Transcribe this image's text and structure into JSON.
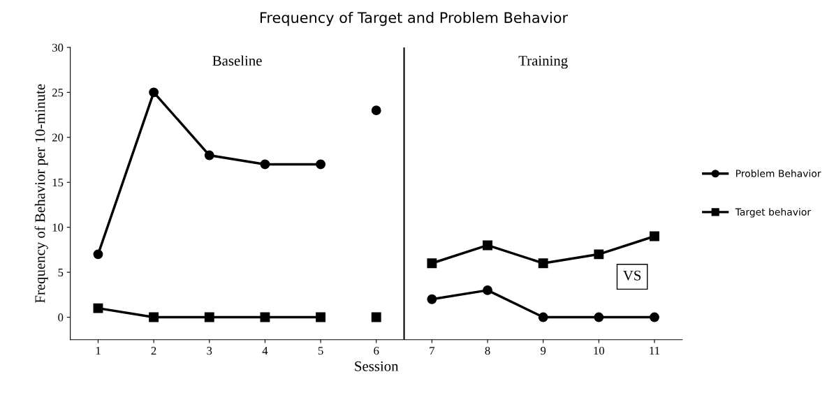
{
  "chart_data": {
    "type": "line",
    "title": "Frequency of Target and Problem Behavior",
    "xlabel": "Session",
    "ylabel": "Frequency of Behavior per 10-minute",
    "xlim": [
      0.5,
      11.5
    ],
    "xticks": [
      1,
      2,
      3,
      4,
      5,
      6,
      7,
      8,
      9,
      10,
      11
    ],
    "ylim": [
      -2.5,
      30
    ],
    "yticks": [
      0,
      5,
      10,
      15,
      20,
      25,
      30
    ],
    "grid": false,
    "legend": "right",
    "line_style": "solid",
    "series": [
      {
        "name": "Problem Behavior",
        "color": "#000000",
        "marker": "circle",
        "x": [
          1,
          2,
          3,
          4,
          5
        ],
        "values": [
          7,
          25,
          18,
          17,
          17
        ]
      },
      {
        "color": "#000000",
        "marker": "circle",
        "x": [
          6
        ],
        "values": [
          23
        ]
      },
      {
        "color": "#000000",
        "marker": "circle",
        "x": [
          7,
          8,
          9,
          10,
          11
        ],
        "values": [
          2,
          3,
          0,
          0,
          0
        ]
      },
      {
        "name": "Target behavior",
        "color": "#000000",
        "marker": "square",
        "x": [
          1,
          2,
          3,
          4,
          5
        ],
        "values": [
          1,
          0,
          0,
          0,
          0
        ]
      },
      {
        "color": "#000000",
        "marker": "square",
        "x": [
          6
        ],
        "values": [
          0
        ]
      },
      {
        "color": "#000000",
        "marker": "square",
        "x": [
          7,
          8,
          9,
          10,
          11
        ],
        "values": [
          6,
          8,
          6,
          7,
          9
        ]
      }
    ],
    "ref_lines": [
      {
        "axis": "x",
        "value": 6.5,
        "color": "#000000",
        "line_style": "solid"
      }
    ],
    "annotations": [
      "Baseline",
      "Training",
      {
        "text": "VS",
        "x": 10.6,
        "y": 4.5
      }
    ]
  }
}
